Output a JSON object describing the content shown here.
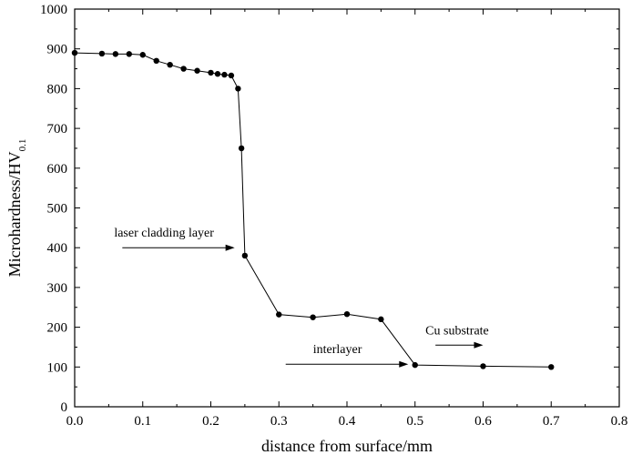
{
  "chart_data": {
    "type": "line",
    "title": "",
    "xlabel": "distance from surface/mm",
    "ylabel_main": "Microhardness/HV",
    "ylabel_sub": "0.1",
    "xlim": [
      0.0,
      0.8
    ],
    "ylim": [
      0,
      1000
    ],
    "x_ticks": [
      0.0,
      0.1,
      0.2,
      0.3,
      0.4,
      0.5,
      0.6,
      0.7,
      0.8
    ],
    "x_tick_labels": [
      "0.0",
      "0.1",
      "0.2",
      "0.3",
      "0.4",
      "0.5",
      "0.6",
      "0.7",
      "0.8"
    ],
    "y_ticks": [
      0,
      100,
      200,
      300,
      400,
      500,
      600,
      700,
      800,
      900,
      1000
    ],
    "y_tick_labels": [
      "0",
      "100",
      "200",
      "300",
      "400",
      "500",
      "600",
      "700",
      "800",
      "900",
      "1000"
    ],
    "grid": false,
    "legend": "none",
    "series": [
      {
        "name": "microhardness",
        "x": [
          0.0,
          0.04,
          0.06,
          0.08,
          0.1,
          0.12,
          0.14,
          0.16,
          0.18,
          0.2,
          0.21,
          0.22,
          0.23,
          0.24,
          0.245,
          0.25,
          0.3,
          0.35,
          0.4,
          0.45,
          0.5,
          0.6,
          0.7
        ],
        "y": [
          890,
          888,
          887,
          887,
          885,
          870,
          860,
          850,
          845,
          840,
          837,
          835,
          833,
          800,
          650,
          380,
          232,
          225,
          233,
          220,
          105,
          102,
          100
        ]
      }
    ],
    "annotations": [
      {
        "text": "laser cladding layer",
        "arrow_from": [
          0.07,
          400
        ],
        "arrow_to": [
          0.235,
          400
        ]
      },
      {
        "text": "interlayer",
        "arrow_from": [
          0.31,
          107
        ],
        "arrow_to": [
          0.49,
          107
        ]
      },
      {
        "text": "Cu substrate",
        "arrow_from": [
          0.53,
          155
        ],
        "arrow_to": [
          0.6,
          155
        ]
      }
    ]
  }
}
